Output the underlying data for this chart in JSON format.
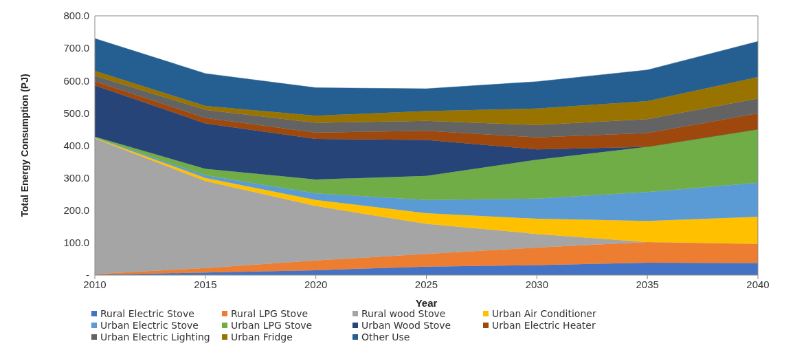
{
  "chart_data": {
    "type": "area",
    "stacked": true,
    "xlabel": "Year",
    "ylabel": "Total Energy Consumption (PJ)",
    "x": [
      2010,
      2015,
      2020,
      2025,
      2030,
      2035,
      2040
    ],
    "xlim": [
      2010,
      2040
    ],
    "xticks": [
      2010,
      2015,
      2020,
      2025,
      2030,
      2035,
      2040
    ],
    "ylim": [
      0,
      800
    ],
    "yticks": [
      {
        "value": 0,
        "label": "-"
      },
      {
        "value": 100,
        "label": "100.0"
      },
      {
        "value": 200,
        "label": "200.0"
      },
      {
        "value": 300,
        "label": "300.0"
      },
      {
        "value": 400,
        "label": "400.0"
      },
      {
        "value": 500,
        "label": "500.0"
      },
      {
        "value": 600,
        "label": "600.0"
      },
      {
        "value": 700,
        "label": "700.0"
      },
      {
        "value": 800,
        "label": "800.0"
      }
    ],
    "grid": false,
    "legend": "bottom",
    "series": [
      {
        "name": "Rural Electric Stove",
        "color": "#4472c4",
        "values": [
          1,
          8,
          15,
          26,
          31,
          38,
          37
        ]
      },
      {
        "name": "Rural LPG Stove",
        "color": "#ed7d31",
        "values": [
          2,
          14,
          30,
          39,
          54,
          64,
          59
        ]
      },
      {
        "name": "Rural wood Stove",
        "color": "#a5a5a5",
        "values": [
          419,
          268,
          168,
          93,
          42,
          0,
          0
        ]
      },
      {
        "name": "Urban Air Conditioner",
        "color": "#ffc000",
        "values": [
          2,
          10,
          19,
          33,
          47,
          65,
          84
        ]
      },
      {
        "name": "Urban Electric Stove",
        "color": "#5b9bd5",
        "values": [
          1,
          8,
          20,
          41,
          62,
          89,
          105
        ]
      },
      {
        "name": "Urban LPG Stove",
        "color": "#70ad47",
        "values": [
          2,
          20,
          43,
          74,
          120,
          140,
          165
        ]
      },
      {
        "name": "Urban Wood Stove",
        "color": "#264478",
        "values": [
          158,
          140,
          125,
          111,
          32,
          0,
          0
        ]
      },
      {
        "name": "Urban Electric Heater",
        "color": "#9e480e",
        "values": [
          13,
          17,
          20,
          28,
          37,
          42,
          49
        ]
      },
      {
        "name": "Urban Electric Lighting",
        "color": "#636363",
        "values": [
          17,
          25,
          30,
          31,
          38,
          43,
          46
        ]
      },
      {
        "name": "Urban Fridge",
        "color": "#997300",
        "values": [
          15,
          12,
          22,
          30,
          51,
          56,
          66
        ]
      },
      {
        "name": "Other Use",
        "color": "#255e91",
        "values": [
          100,
          100,
          86,
          69,
          83,
          96,
          110
        ]
      }
    ]
  }
}
